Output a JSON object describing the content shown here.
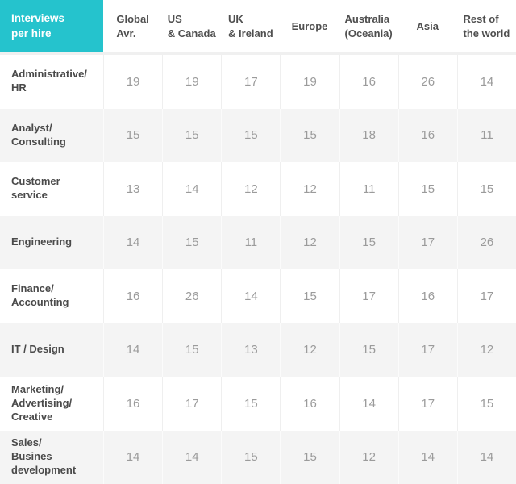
{
  "title": "Interviews per hire",
  "colors": {
    "accent_teal": "#25c3cd",
    "row_alt_bg": "#f4f4f4",
    "header_text": "#4f4f4f",
    "label_text": "#4a4a4a",
    "value_text": "#9b9b9b",
    "grid_line": "#efefef"
  },
  "table": {
    "corner_header": "Interviews\nper hire",
    "column_headers": [
      "Global\nAvr.",
      "US\n& Canada",
      "UK\n& Ireland",
      "Europe",
      "Australia\n(Oceania)",
      "Asia",
      "Rest of\nthe world"
    ],
    "rows": [
      {
        "label": "Administrative/\nHR",
        "values": [
          "19",
          "19",
          "17",
          "19",
          "16",
          "26",
          "14"
        ]
      },
      {
        "label": "Analyst/\nConsulting",
        "values": [
          "15",
          "15",
          "15",
          "15",
          "18",
          "16",
          "11"
        ]
      },
      {
        "label": "Customer\nservice",
        "values": [
          "13",
          "14",
          "12",
          "12",
          "11",
          "15",
          "15"
        ]
      },
      {
        "label": "Engineering",
        "values": [
          "14",
          "15",
          "11",
          "12",
          "15",
          "17",
          "26"
        ]
      },
      {
        "label": "Finance/\nAccounting",
        "values": [
          "16",
          "26",
          "14",
          "15",
          "17",
          "16",
          "17"
        ]
      },
      {
        "label": "IT / Design",
        "values": [
          "14",
          "15",
          "13",
          "12",
          "15",
          "17",
          "12"
        ]
      },
      {
        "label": "Marketing/\nAdvertising/\nCreative",
        "values": [
          "16",
          "17",
          "15",
          "16",
          "14",
          "17",
          "15"
        ]
      },
      {
        "label": "Sales/\nBusines\ndevelopment",
        "values": [
          "14",
          "14",
          "15",
          "15",
          "12",
          "14",
          "14"
        ]
      }
    ]
  },
  "chart_data": {
    "type": "table",
    "title": "Interviews per hire",
    "categories": [
      "Administrative/HR",
      "Analyst/Consulting",
      "Customer service",
      "Engineering",
      "Finance/Accounting",
      "IT / Design",
      "Marketing/Advertising/Creative",
      "Sales/Busines development"
    ],
    "series": [
      {
        "name": "Global Avr.",
        "values": [
          19,
          15,
          13,
          14,
          16,
          14,
          16,
          14
        ]
      },
      {
        "name": "US & Canada",
        "values": [
          19,
          15,
          14,
          15,
          26,
          15,
          17,
          14
        ]
      },
      {
        "name": "UK & Ireland",
        "values": [
          17,
          15,
          12,
          11,
          14,
          13,
          15,
          15
        ]
      },
      {
        "name": "Europe",
        "values": [
          19,
          15,
          12,
          12,
          15,
          12,
          16,
          15
        ]
      },
      {
        "name": "Australia (Oceania)",
        "values": [
          16,
          18,
          11,
          15,
          17,
          15,
          14,
          12
        ]
      },
      {
        "name": "Asia",
        "values": [
          26,
          16,
          15,
          17,
          16,
          17,
          17,
          14
        ]
      },
      {
        "name": "Rest of the world",
        "values": [
          14,
          11,
          15,
          26,
          17,
          12,
          15,
          14
        ]
      }
    ],
    "layout": {
      "first_column": "row labels",
      "alternating_row_shading": true,
      "legend": "none"
    }
  }
}
